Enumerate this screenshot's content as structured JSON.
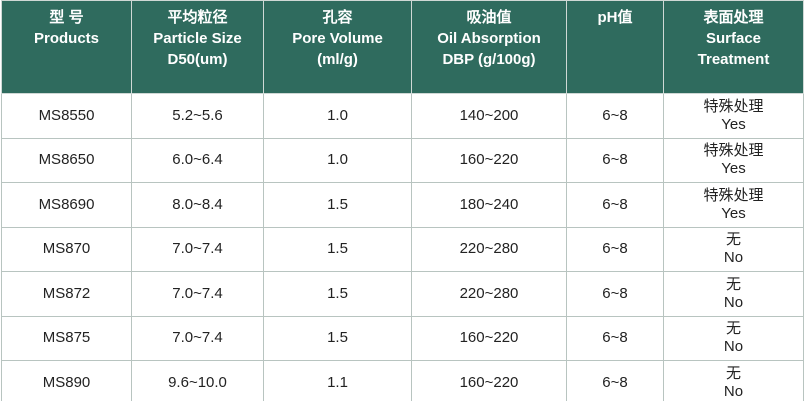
{
  "table": {
    "header": [
      [
        "型 号",
        "Products"
      ],
      [
        "平均粒径",
        "Particle Size",
        "D50(um)"
      ],
      [
        "孔容",
        "Pore Volume",
        "(ml/g)"
      ],
      [
        "吸油值",
        "Oil Absorption",
        "DBP (g/100g)"
      ],
      [
        "pH值"
      ],
      [
        "表面处理",
        "Surface",
        "Treatment"
      ]
    ],
    "rows": [
      [
        "MS8550",
        "5.2~5.6",
        "1.0",
        "140~200",
        "6~8",
        [
          "特殊处理",
          "Yes"
        ]
      ],
      [
        "MS8650",
        "6.0~6.4",
        "1.0",
        "160~220",
        "6~8",
        [
          "特殊处理",
          "Yes"
        ]
      ],
      [
        "MS8690",
        "8.0~8.4",
        "1.5",
        "180~240",
        "6~8",
        [
          "特殊处理",
          "Yes"
        ]
      ],
      [
        "MS870",
        "7.0~7.4",
        "1.5",
        "220~280",
        "6~8",
        [
          "无",
          "No"
        ]
      ],
      [
        "MS872",
        "7.0~7.4",
        "1.5",
        "220~280",
        "6~8",
        [
          "无",
          "No"
        ]
      ],
      [
        "MS875",
        "7.0~7.4",
        "1.5",
        "160~220",
        "6~8",
        [
          "无",
          "No"
        ]
      ],
      [
        "MS890",
        "9.6~10.0",
        "1.1",
        "160~220",
        "6~8",
        [
          "无",
          "No"
        ]
      ]
    ]
  }
}
